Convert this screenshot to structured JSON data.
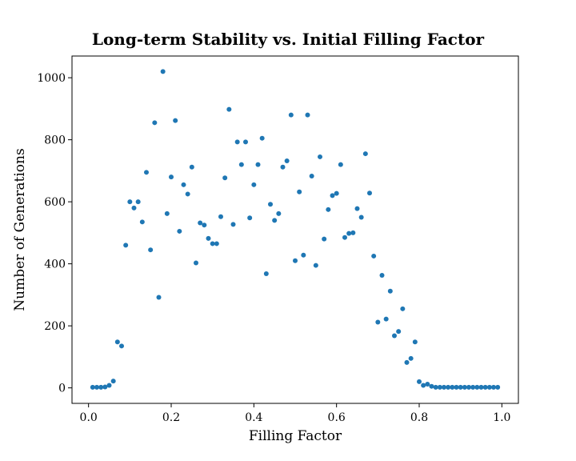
{
  "chart_data": {
    "type": "scatter",
    "title": "Long-term Stability vs. Initial Filling Factor",
    "xlabel": "Filling Factor",
    "ylabel": "Number of Generations",
    "xlim": [
      -0.04,
      1.04
    ],
    "ylim": [
      -50,
      1070
    ],
    "xticks": [
      0.0,
      0.2,
      0.4,
      0.6,
      0.8,
      1.0
    ],
    "xtick_labels": [
      "0.0",
      "0.2",
      "0.4",
      "0.6",
      "0.8",
      "1.0"
    ],
    "yticks": [
      0,
      200,
      400,
      600,
      800,
      1000
    ],
    "ytick_labels": [
      "0",
      "200",
      "400",
      "600",
      "800",
      "1000"
    ],
    "grid": false,
    "legend": "none",
    "marker_color": "#1f77b4",
    "series": [
      {
        "x": [
          0.01,
          0.02,
          0.03,
          0.04,
          0.05,
          0.06,
          0.07,
          0.08,
          0.09,
          0.1,
          0.11,
          0.12,
          0.13,
          0.14,
          0.15,
          0.16,
          0.17,
          0.18,
          0.19,
          0.2,
          0.21,
          0.22,
          0.23,
          0.24,
          0.25,
          0.26,
          0.27,
          0.28,
          0.29,
          0.3,
          0.31,
          0.32,
          0.33,
          0.34,
          0.35,
          0.36,
          0.37,
          0.38,
          0.39,
          0.4,
          0.41,
          0.42,
          0.43,
          0.44,
          0.45,
          0.46,
          0.47,
          0.48,
          0.49,
          0.5,
          0.51,
          0.52,
          0.53,
          0.54,
          0.55,
          0.56,
          0.57,
          0.58,
          0.59,
          0.6,
          0.61,
          0.62,
          0.63,
          0.64,
          0.65,
          0.66,
          0.67,
          0.68,
          0.69,
          0.7,
          0.71,
          0.72,
          0.73,
          0.74,
          0.75,
          0.76,
          0.77,
          0.78,
          0.79,
          0.8,
          0.81,
          0.82,
          0.83,
          0.84,
          0.85,
          0.86,
          0.87,
          0.88,
          0.89,
          0.9,
          0.91,
          0.92,
          0.93,
          0.94,
          0.95,
          0.96,
          0.97,
          0.98,
          0.99
        ],
        "y": [
          2,
          2,
          2,
          3,
          8,
          22,
          148,
          135,
          460,
          600,
          580,
          600,
          535,
          695,
          445,
          855,
          292,
          1020,
          562,
          680,
          862,
          505,
          655,
          625,
          712,
          403,
          532,
          525,
          482,
          465,
          465,
          552,
          677,
          898,
          527,
          793,
          720,
          793,
          548,
          655,
          720,
          805,
          368,
          592,
          540,
          562,
          712,
          732,
          880,
          410,
          632,
          428,
          880,
          683,
          395,
          745,
          480,
          575,
          620,
          627,
          720,
          485,
          498,
          500,
          578,
          550,
          755,
          628,
          425,
          212,
          363,
          222,
          312,
          168,
          182,
          255,
          82,
          95,
          148,
          20,
          8,
          12,
          5,
          2,
          2,
          2,
          2,
          2,
          2,
          2,
          2,
          2,
          2,
          2,
          2,
          2,
          2,
          2,
          2
        ]
      }
    ]
  }
}
